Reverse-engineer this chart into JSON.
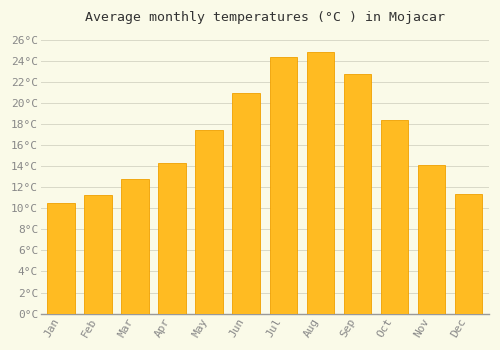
{
  "title": "Average monthly temperatures (°C ) in Mojacar",
  "months": [
    "Jan",
    "Feb",
    "Mar",
    "Apr",
    "May",
    "Jun",
    "Jul",
    "Aug",
    "Sep",
    "Oct",
    "Nov",
    "Dec"
  ],
  "values": [
    10.5,
    11.3,
    12.8,
    14.3,
    17.4,
    21.0,
    24.4,
    24.9,
    22.8,
    18.4,
    14.1,
    11.4
  ],
  "bar_color": "#FFBB22",
  "bar_edge_color": "#F0A000",
  "background_color": "#FAFAE8",
  "grid_color": "#D8D8C8",
  "ylim": [
    0,
    27
  ],
  "ytick_step": 2,
  "title_fontsize": 9.5,
  "tick_fontsize": 8,
  "font_family": "monospace"
}
